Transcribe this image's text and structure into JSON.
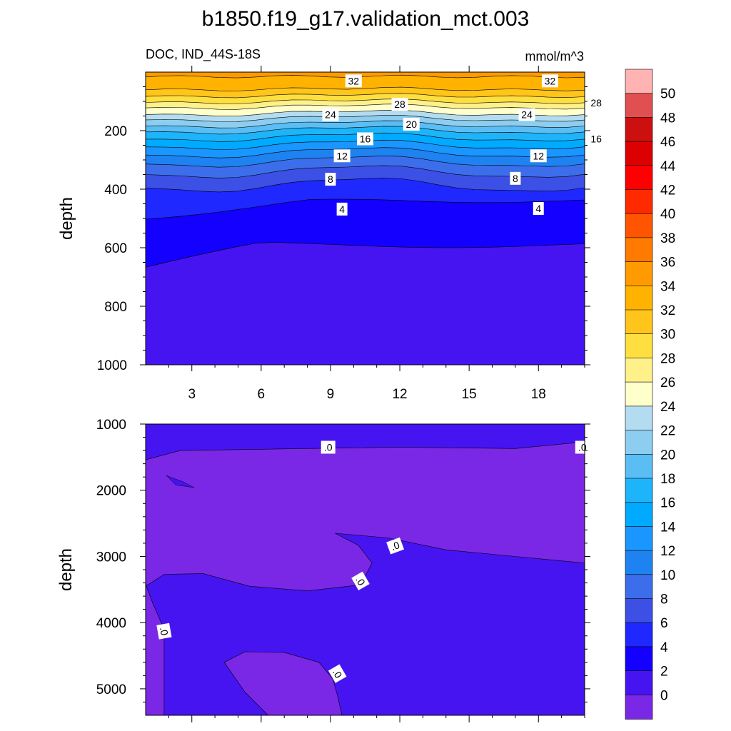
{
  "title": "b1850.f19_g17.validation_mct.003",
  "chart_data": [
    {
      "type": "heatmap",
      "subtitle_left": "DOC, IND_44S-18S",
      "subtitle_right": "mmol/m^3",
      "ylabel": "depth",
      "xlabel": "",
      "xlim": [
        1,
        20
      ],
      "ylim": [
        0,
        1000
      ],
      "y_reversed": true,
      "x_ticks": [
        3,
        6,
        9,
        12,
        15,
        18
      ],
      "y_ticks": [
        200,
        400,
        600,
        800,
        1000
      ],
      "contour_labels": [
        "32",
        "28",
        "24",
        "20",
        "16",
        "12",
        "8",
        "4",
        "32",
        "28",
        "24",
        "16",
        "12",
        "8",
        "4"
      ],
      "depth_of_level": [
        {
          "level": 34,
          "depth": 15
        },
        {
          "level": 32,
          "depth": 58
        },
        {
          "level": 30,
          "depth": 80
        },
        {
          "level": 28,
          "depth": 100
        },
        {
          "level": 26,
          "depth": 118
        },
        {
          "level": 24,
          "depth": 140
        },
        {
          "level": 22,
          "depth": 158
        },
        {
          "level": 20,
          "depth": 178
        },
        {
          "level": 18,
          "depth": 198
        },
        {
          "level": 16,
          "depth": 222
        },
        {
          "level": 14,
          "depth": 248
        },
        {
          "level": 12,
          "depth": 275
        },
        {
          "level": 10,
          "depth": 305
        },
        {
          "level": 8,
          "depth": 340
        },
        {
          "level": 6,
          "depth": 385
        },
        {
          "level": 4,
          "depth": 440
        },
        {
          "level": 2,
          "depth": 590
        }
      ]
    },
    {
      "type": "heatmap",
      "ylabel": "depth",
      "xlabel": "",
      "xlim": [
        1,
        20
      ],
      "ylim": [
        1000,
        5400
      ],
      "y_reversed": true,
      "y_ticks": [
        1000,
        2000,
        3000,
        4000,
        5000
      ],
      "contour_labels": [
        ".0",
        ".0",
        ".0",
        ".0",
        ".0",
        ".0"
      ],
      "note_values": "values near 0 (between -2 and 2)"
    }
  ],
  "colorbar": {
    "labels": [
      "50",
      "48",
      "46",
      "44",
      "42",
      "40",
      "38",
      "36",
      "34",
      "32",
      "30",
      "28",
      "26",
      "24",
      "22",
      "20",
      "18",
      "16",
      "14",
      "12",
      "10",
      "8",
      "6",
      "4",
      "2",
      "0"
    ],
    "colors_top_to_bottom": [
      "#ffb3b3",
      "#e05050",
      "#cc1010",
      "#dd0000",
      "#ff0000",
      "#ff2a00",
      "#ff5500",
      "#ff7a00",
      "#ff9a00",
      "#ffb300",
      "#ffc51a",
      "#ffdf40",
      "#fff18a",
      "#ffffcc",
      "#b4dcf0",
      "#8ccdf0",
      "#5abef5",
      "#1eb4fa",
      "#00aaff",
      "#1996ff",
      "#1e82f0",
      "#3c6eeb",
      "#3c50e6",
      "#1e28ff",
      "#1400ff",
      "#4614f0",
      "#7a28e6"
    ]
  }
}
